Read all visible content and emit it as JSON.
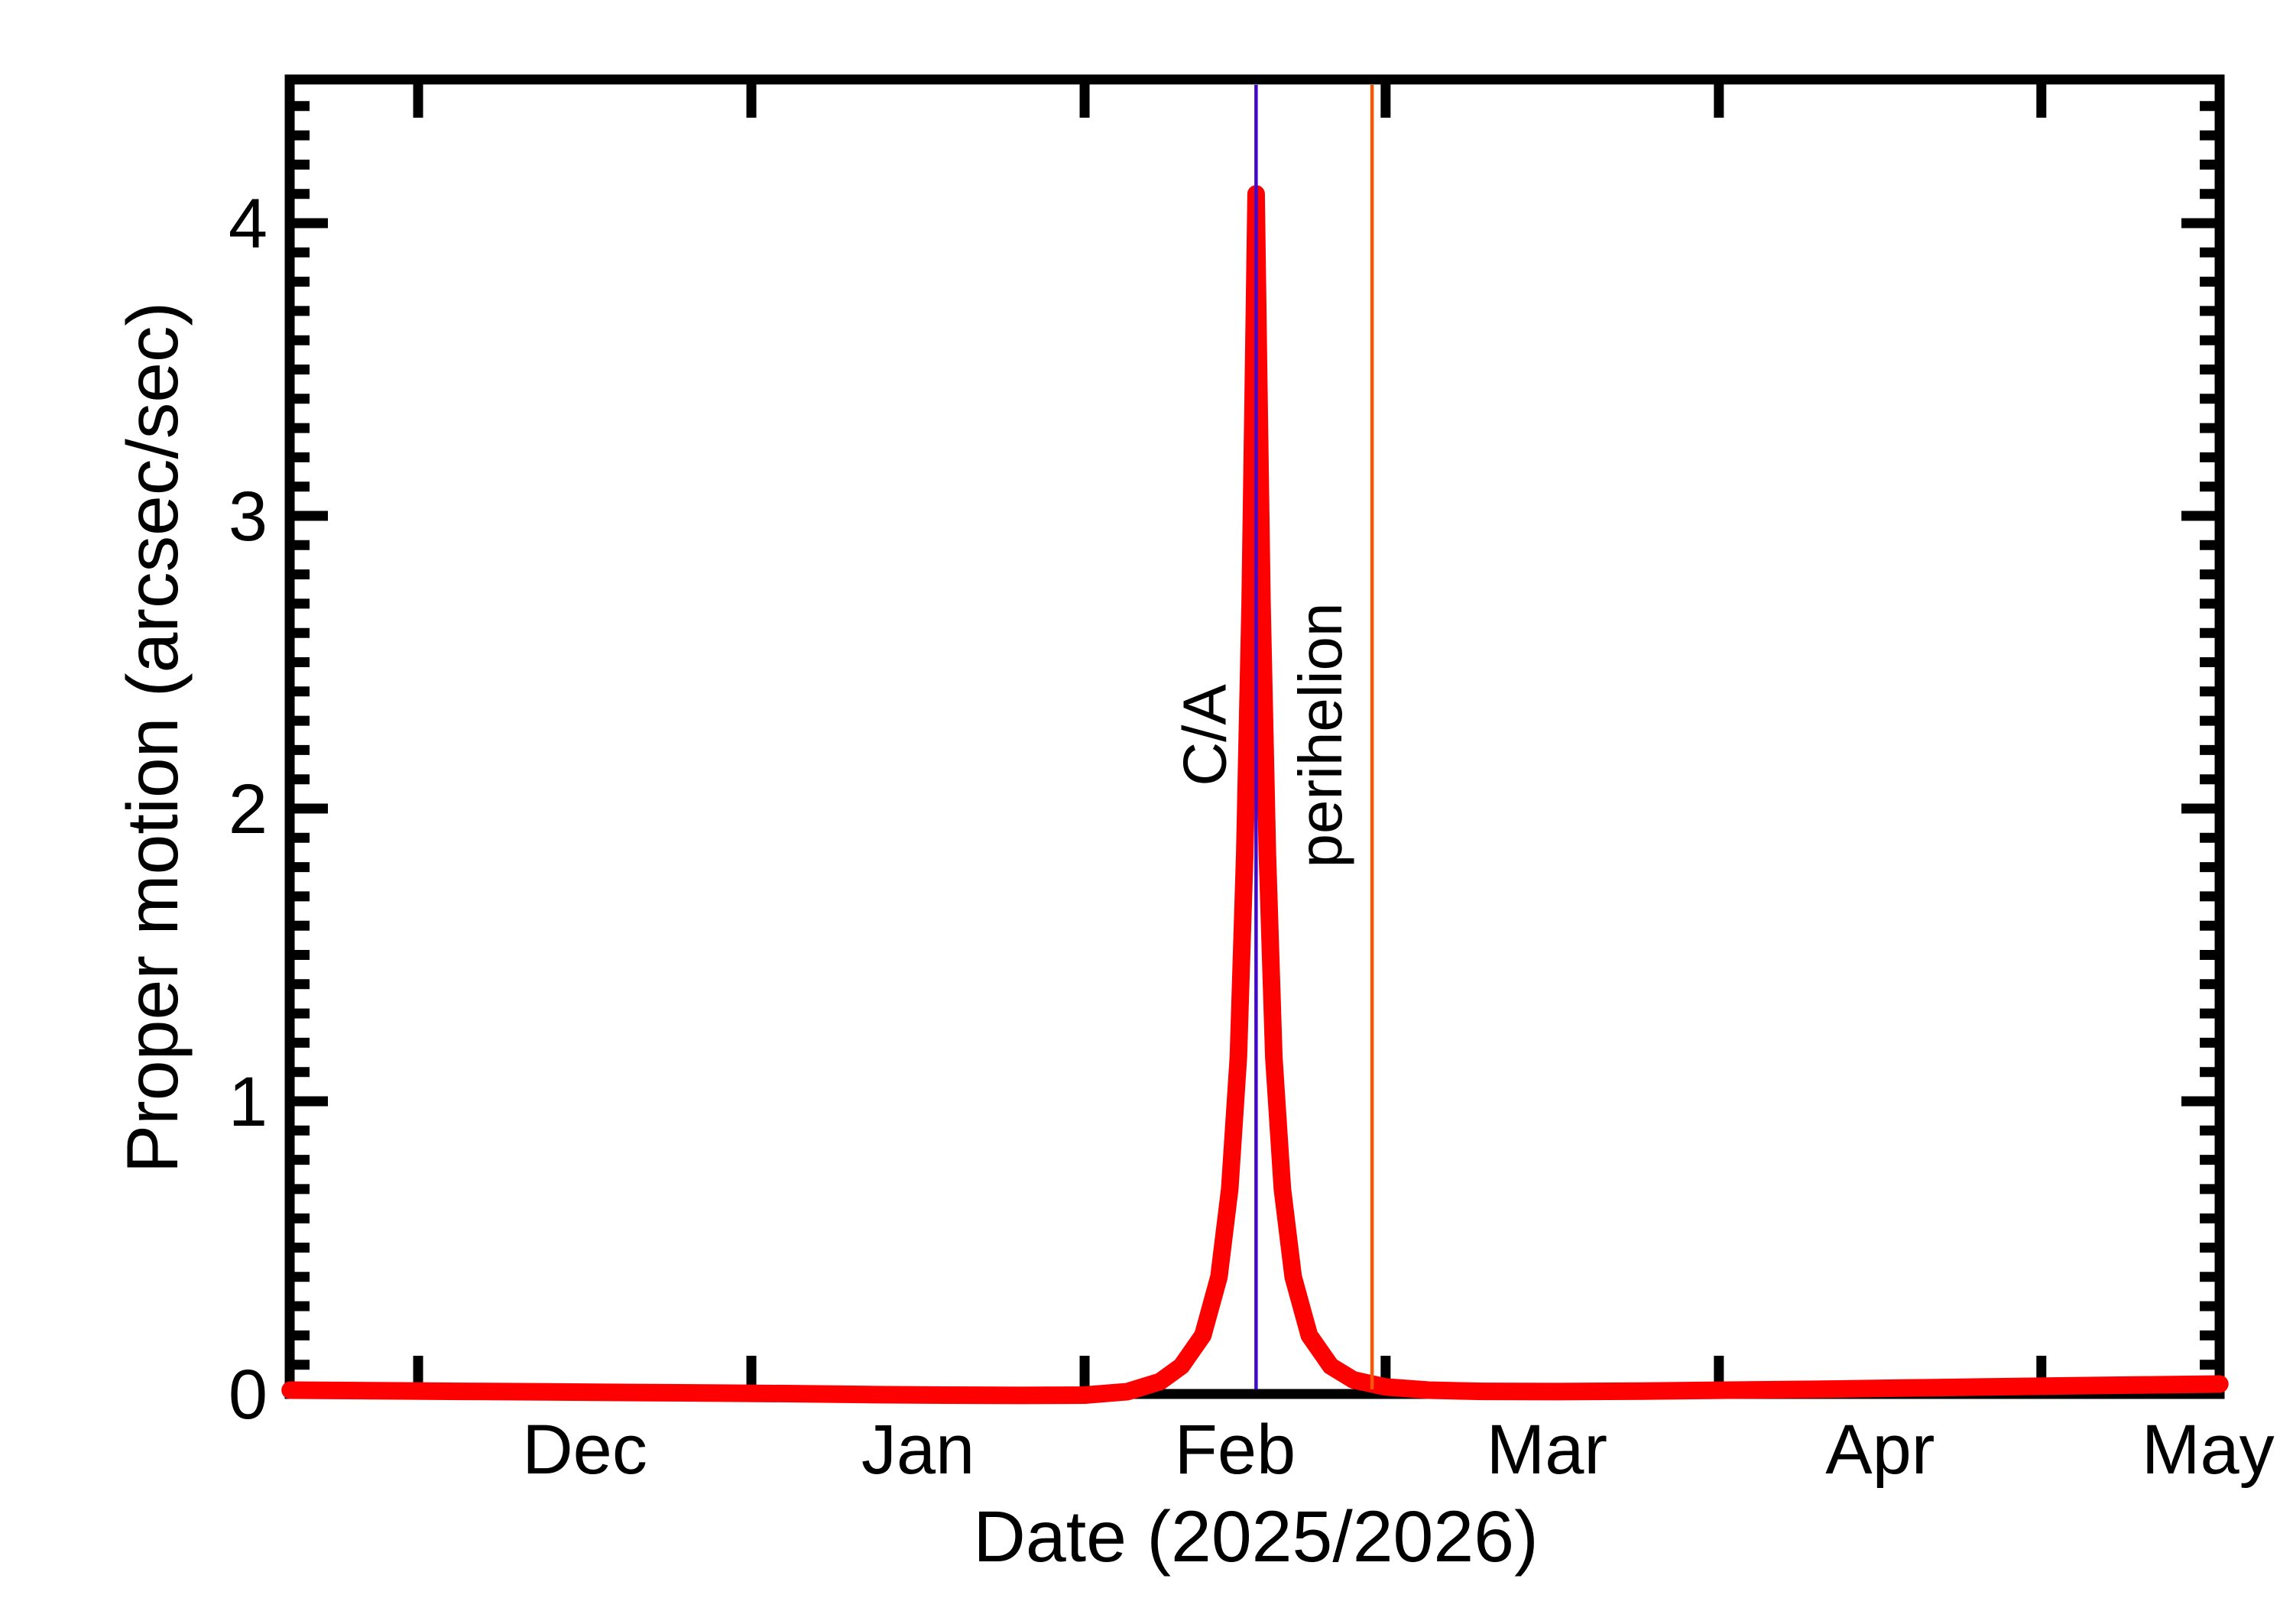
{
  "figure": {
    "background": "#FFFFFF",
    "frame_color": "#000000"
  },
  "chart_data": {
    "type": "line",
    "title": "",
    "xlabel": "Date (2025/2026)",
    "ylabel": "Proper motion (arcsec/sec)",
    "x_unit": "days since 2025-11-01",
    "xlim": [
      18.1,
      197.6
    ],
    "ylim": [
      0,
      4.49
    ],
    "grid": "off",
    "x_axis": {
      "month_tick_days": [
        30,
        61,
        92,
        120,
        151,
        181
      ],
      "month_labels": [
        {
          "label": "Dec",
          "day": 45.5
        },
        {
          "label": "Jan",
          "day": 76.5
        },
        {
          "label": "Feb",
          "day": 106
        },
        {
          "label": "Mar",
          "day": 135
        },
        {
          "label": "Apr",
          "day": 166
        },
        {
          "label": "May",
          "day": 196.5
        }
      ]
    },
    "y_axis": {
      "tick_labels": [
        {
          "value": 0,
          "label": "0"
        },
        {
          "value": 1,
          "label": "1"
        },
        {
          "value": 2,
          "label": "2"
        },
        {
          "value": 3,
          "label": "3"
        },
        {
          "value": 4,
          "label": "4"
        }
      ],
      "minor_step": 0.1,
      "minor_max": 4.4
    },
    "series": [
      {
        "name": "proper motion",
        "color": "#FF0000",
        "stroke_px": 23,
        "points": [
          [
            18.1,
            0.013
          ],
          [
            26,
            0.011
          ],
          [
            34,
            0.009
          ],
          [
            42,
            0.007
          ],
          [
            50,
            0.005
          ],
          [
            58,
            0.003
          ],
          [
            65,
            0.001
          ],
          [
            72,
            -0.002
          ],
          [
            79,
            -0.004
          ],
          [
            86,
            -0.005
          ],
          [
            92,
            -0.004
          ],
          [
            96,
            0.008
          ],
          [
            99,
            0.042
          ],
          [
            101,
            0.095
          ],
          [
            103,
            0.2
          ],
          [
            104.5,
            0.4
          ],
          [
            105.5,
            0.7
          ],
          [
            106.3,
            1.15
          ],
          [
            106.9,
            1.85
          ],
          [
            107.4,
            2.7
          ],
          [
            107.7,
            3.45
          ],
          [
            107.95,
            4.1
          ],
          [
            108.2,
            3.45
          ],
          [
            108.5,
            2.7
          ],
          [
            109,
            1.85
          ],
          [
            109.6,
            1.15
          ],
          [
            110.4,
            0.7
          ],
          [
            111.4,
            0.4
          ],
          [
            112.9,
            0.2
          ],
          [
            114.9,
            0.095
          ],
          [
            117,
            0.048
          ],
          [
            120,
            0.024
          ],
          [
            124,
            0.013
          ],
          [
            129,
            0.009
          ],
          [
            136,
            0.008
          ],
          [
            144,
            0.01
          ],
          [
            152,
            0.013
          ],
          [
            160,
            0.016
          ],
          [
            168,
            0.02
          ],
          [
            176,
            0.024
          ],
          [
            184,
            0.028
          ],
          [
            191,
            0.031
          ],
          [
            197.6,
            0.034
          ]
        ]
      }
    ],
    "peak": {
      "day": 107.95,
      "value": 4.1
    },
    "annotations": [
      {
        "id": "close-approach",
        "label": "C/A",
        "day": 107.95,
        "color": "#4208CE"
      },
      {
        "id": "perihelion",
        "label": "perihelion",
        "day": 118.74,
        "color": "#F95706"
      }
    ]
  }
}
